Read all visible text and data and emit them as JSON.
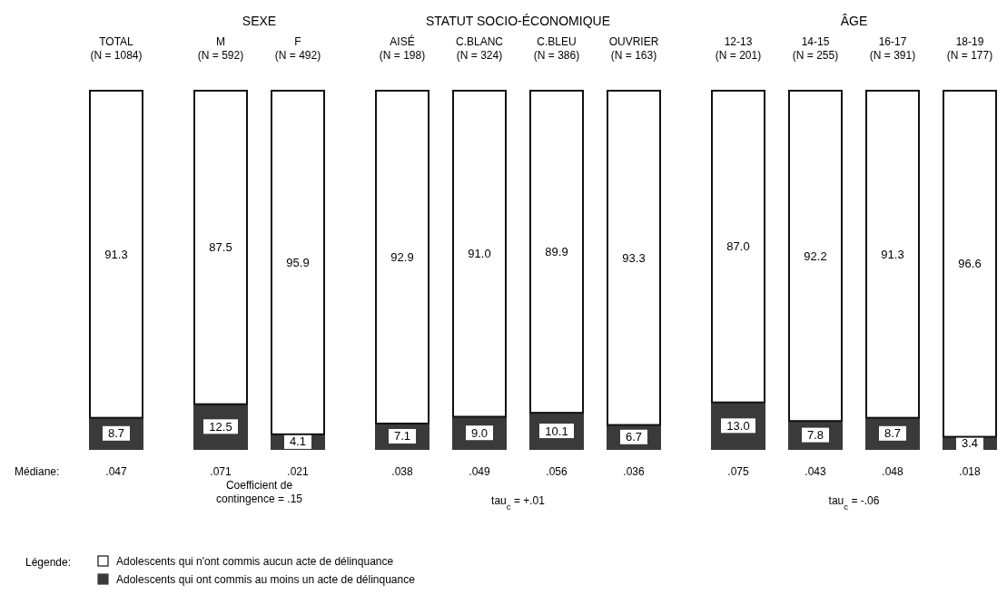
{
  "chart_data": {
    "type": "bar",
    "stacked": true,
    "categories": [
      "TOTAL\n(N = 1084)",
      "M\n(N = 592)",
      "F\n(N = 492)",
      "AISÉ\n(N = 198)",
      "C.BLANC\n(N = 324)",
      "C.BLEU\n(N = 386)",
      "OUVRIER\n(N = 163)",
      "12-13\n(N = 201)",
      "14-15\n(N = 255)",
      "16-17\n(N = 391)",
      "18-19\n(N = 177)"
    ],
    "series": [
      {
        "name": "Adolescents qui ont commis au moins un acte de délinquance",
        "color": "#3a3a3a",
        "values": [
          8.7,
          12.5,
          4.1,
          7.1,
          9.0,
          10.1,
          6.7,
          13.0,
          7.8,
          8.7,
          3.4
        ],
        "value_labels": [
          "8.7",
          "12.5",
          "4.1",
          "7.1",
          "9.0",
          "10.1",
          "6.7",
          "13.0",
          "7.8",
          "8.7",
          "3.4"
        ]
      },
      {
        "name": "Adolescents qui n'ont commis aucun acte de délinquance",
        "color": "#ffffff",
        "values": [
          91.3,
          87.5,
          95.9,
          92.9,
          91.0,
          89.9,
          93.3,
          87.0,
          92.2,
          91.3,
          96.6
        ],
        "value_labels": [
          "91.3",
          "87.5",
          "95.9",
          "92.9",
          "91.0",
          "89.9",
          "93.3",
          "87.0",
          "92.2",
          "91.3",
          "96.6"
        ]
      }
    ],
    "legend": "bottom left",
    "legend_title": "Légende:",
    "annotations": [
      "SEXE",
      "STATUT SOCIO-ÉCONOMIQUE",
      "ÂGE",
      "Médiane:",
      ".047",
      ".071",
      ".021",
      ".038",
      ".049",
      ".056",
      ".036",
      ".075",
      ".043",
      ".048",
      ".018",
      "Coefficient de contingence = .15",
      "tau$_{c}$ = +.01",
      "tau$_{c}$ = -.06"
    ]
  }
}
